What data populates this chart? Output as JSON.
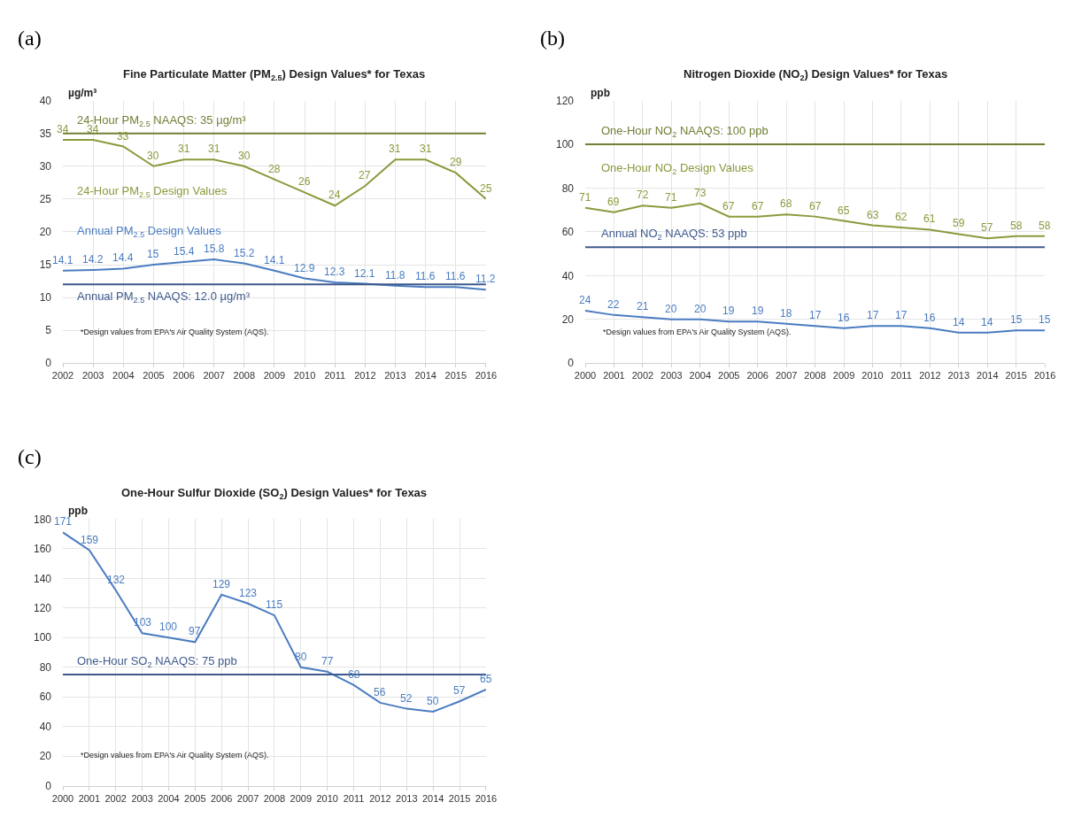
{
  "chart_data": [
    {
      "type": "line",
      "title": "Fine Particulate Matter (PM$_{2.5}$) Design Values* for Texas",
      "ylabel": "µg/m³",
      "x": [
        2002,
        2003,
        2004,
        2005,
        2006,
        2007,
        2008,
        2009,
        2010,
        2011,
        2012,
        2013,
        2014,
        2015,
        2016
      ],
      "series": [
        {
          "name": "24-Hour PM$_{2.5}$ Design Values",
          "color": "#8a9a3c",
          "values": [
            34,
            34,
            33,
            30,
            31,
            31,
            30,
            28,
            26,
            24,
            27,
            31,
            31,
            29,
            25
          ]
        },
        {
          "name": "Annual PM$_{2.5}$ Design Values",
          "color": "#4a7cc0",
          "values": [
            14.1,
            14.2,
            14.4,
            15,
            15.4,
            15.8,
            15.2,
            14.1,
            12.9,
            12.3,
            12.1,
            11.8,
            11.6,
            11.6,
            11.2
          ]
        }
      ],
      "ref_lines": [
        {
          "axis": "y",
          "value": 35,
          "label": "24-Hour PM$_{2.5}$ NAAQS: 35 µg/m³",
          "color": "#6f7f35"
        },
        {
          "axis": "y",
          "value": 12,
          "label": "Annual PM$_{2.5}$ NAAQS: 12.0 µg/m³",
          "color": "#3e5a8c"
        }
      ],
      "annotations": [
        "(a)",
        "*Design values from EPA's Air Quality System (AQS)."
      ],
      "xlim": [
        2002,
        2016
      ],
      "xticks": [
        2002,
        2003,
        2004,
        2005,
        2006,
        2007,
        2008,
        2009,
        2010,
        2011,
        2012,
        2013,
        2014,
        2015,
        2016
      ],
      "ylim": [
        0,
        40
      ],
      "yticks": [
        0,
        5,
        10,
        15,
        20,
        25,
        30,
        35,
        40
      ],
      "grid": true,
      "data_labels": true,
      "marker": "none",
      "line_style": "solid"
    },
    {
      "type": "line",
      "title": "Nitrogen Dioxide (NO$_{2}$) Design Values* for Texas",
      "ylabel": "ppb",
      "x": [
        2000,
        2001,
        2002,
        2003,
        2004,
        2005,
        2006,
        2007,
        2008,
        2009,
        2010,
        2011,
        2012,
        2013,
        2014,
        2015,
        2016
      ],
      "series": [
        {
          "name": "One-Hour NO$_{2}$ Design Values",
          "color": "#8a9a3c",
          "values": [
            71,
            69,
            72,
            71,
            73,
            67,
            67,
            68,
            67,
            65,
            63,
            62,
            61,
            59,
            57,
            58,
            58
          ]
        },
        {
          "color": "#4a7cc0",
          "values": [
            24,
            22,
            21,
            20,
            20,
            19,
            19,
            18,
            17,
            16,
            17,
            17,
            16,
            14,
            14,
            15,
            15
          ]
        }
      ],
      "ref_lines": [
        {
          "axis": "y",
          "value": 100,
          "label": "One-Hour NO$_{2}$ NAAQS: 100 ppb",
          "color": "#6f7f35"
        },
        {
          "axis": "y",
          "value": 53,
          "label": "Annual NO$_{2}$ NAAQS: 53 ppb",
          "color": "#3e5a8c"
        }
      ],
      "annotations": [
        "(b)",
        "*Design values from EPA's Air Quality System (AQS)."
      ],
      "xlim": [
        2000,
        2016
      ],
      "xticks": [
        2000,
        2001,
        2002,
        2003,
        2004,
        2005,
        2006,
        2007,
        2008,
        2009,
        2010,
        2011,
        2012,
        2013,
        2014,
        2015,
        2016
      ],
      "ylim": [
        0,
        120
      ],
      "yticks": [
        0,
        20,
        40,
        60,
        80,
        100,
        120
      ],
      "grid": true,
      "data_labels": true,
      "marker": "none",
      "line_style": "solid"
    },
    {
      "type": "line",
      "title": "One-Hour Sulfur Dioxide (SO$_{2}$) Design Values* for Texas",
      "ylabel": "ppb",
      "x": [
        2000,
        2001,
        2002,
        2003,
        2004,
        2005,
        2006,
        2007,
        2008,
        2009,
        2010,
        2011,
        2012,
        2013,
        2014,
        2015,
        2016
      ],
      "series": [
        {
          "color": "#4a7cc0",
          "values": [
            171,
            159,
            132,
            103,
            100,
            97,
            129,
            123,
            115,
            80,
            77,
            68,
            56,
            52,
            50,
            57,
            65
          ]
        }
      ],
      "ref_lines": [
        {
          "axis": "y",
          "value": 75,
          "label": "One-Hour SO$_{2}$ NAAQS: 75 ppb",
          "color": "#3e5a8c"
        }
      ],
      "annotations": [
        "(c)",
        "*Design values from EPA's Air Quality System (AQS)."
      ],
      "xlim": [
        2000,
        2016
      ],
      "xticks": [
        2000,
        2001,
        2002,
        2003,
        2004,
        2005,
        2006,
        2007,
        2008,
        2009,
        2010,
        2011,
        2012,
        2013,
        2014,
        2015,
        2016
      ],
      "ylim": [
        0,
        180
      ],
      "yticks": [
        0,
        20,
        40,
        60,
        80,
        100,
        120,
        140,
        160,
        180
      ],
      "grid": true,
      "data_labels": true,
      "marker": "none",
      "line_style": "solid"
    }
  ]
}
